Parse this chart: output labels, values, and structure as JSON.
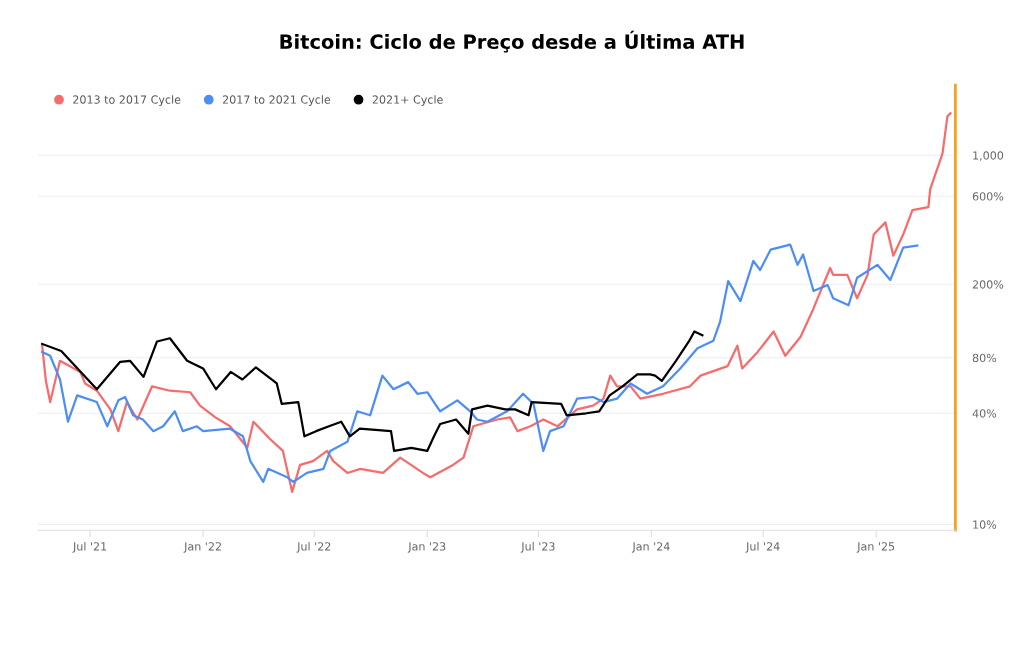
{
  "chart_data": {
    "type": "line",
    "title": "Bitcoin: Ciclo de Preço desde a Última ATH",
    "xlim": [
      "2021-04-07",
      "2025-05-10"
    ],
    "xticks": [
      {
        "value": "2021-07-01",
        "label": "Jul '21"
      },
      {
        "value": "2022-01-01",
        "label": "Jan '22"
      },
      {
        "value": "2022-07-01",
        "label": "Jul '22"
      },
      {
        "value": "2023-01-01",
        "label": "Jan '23"
      },
      {
        "value": "2023-07-01",
        "label": "Jul '23"
      },
      {
        "value": "2024-01-01",
        "label": "Jan '24"
      },
      {
        "value": "2024-07-01",
        "label": "Jul '24"
      },
      {
        "value": "2025-01-01",
        "label": "Jan '25"
      }
    ],
    "ylim": [
      9.3,
      2400
    ],
    "log": "y",
    "yticks": [
      {
        "value": 10,
        "label": "10%"
      },
      {
        "value": 40,
        "label": "40%"
      },
      {
        "value": 80,
        "label": "80%"
      },
      {
        "value": 200,
        "label": "200%"
      },
      {
        "value": 600,
        "label": "600%"
      },
      {
        "value": 1000,
        "label": "1,000"
      }
    ],
    "grid": "y",
    "legend": "top left",
    "series": [
      {
        "name": "2013 to 2017 Cycle",
        "color": "#f76b6b",
        "x": [
          "2021-04-14",
          "2021-04-20",
          "2021-04-27",
          "2021-05-13",
          "2021-06-15",
          "2021-06-23",
          "2021-07-12",
          "2021-08-03",
          "2021-08-16",
          "2021-08-30",
          "2021-09-16",
          "2021-10-10",
          "2021-11-08",
          "2021-12-11",
          "2021-12-27",
          "2022-01-21",
          "2022-02-14",
          "2022-03-14",
          "2022-03-24",
          "2022-04-20",
          "2022-05-11",
          "2022-05-26",
          "2022-06-08",
          "2022-06-29",
          "2022-07-22",
          "2022-08-01",
          "2022-08-24",
          "2022-09-14",
          "2022-10-21",
          "2022-11-18",
          "2022-12-25",
          "2023-01-06",
          "2023-02-12",
          "2023-03-01",
          "2023-03-17",
          "2023-04-25",
          "2023-05-16",
          "2023-05-28",
          "2023-06-18",
          "2023-07-09",
          "2023-08-01",
          "2023-09-02",
          "2023-09-28",
          "2023-10-15",
          "2023-10-26",
          "2023-11-06",
          "2023-11-28",
          "2023-12-14",
          "2024-01-20",
          "2024-03-04",
          "2024-03-21",
          "2024-05-04",
          "2024-05-20",
          "2024-05-28",
          "2024-06-22",
          "2024-07-18",
          "2024-08-06",
          "2024-08-31",
          "2024-09-21",
          "2024-10-18",
          "2024-10-23",
          "2024-11-15",
          "2024-12-01",
          "2024-12-18",
          "2024-12-28",
          "2025-01-16",
          "2025-01-29",
          "2025-02-14",
          "2025-03-01",
          "2025-03-27",
          "2025-03-30",
          "2025-04-19",
          "2025-04-27",
          "2025-05-02"
        ],
        "values": [
          93,
          60,
          46,
          77,
          67,
          58,
          53,
          42,
          32,
          46,
          37,
          56,
          53,
          52,
          44,
          38,
          34,
          26,
          36,
          29,
          25,
          15,
          21,
          22,
          25,
          22,
          19,
          20,
          19,
          23,
          19,
          18,
          21,
          23,
          34,
          37,
          38,
          32,
          34,
          37,
          34,
          42,
          44,
          48,
          64,
          56,
          56,
          48,
          51,
          56,
          64,
          72,
          93,
          70,
          86,
          111,
          82,
          104,
          148,
          245,
          225,
          225,
          168,
          225,
          372,
          433,
          286,
          372,
          504,
          524,
          656,
          1020,
          1626,
          1690
        ]
      },
      {
        "name": "2017 to 2021 Cycle",
        "color": "#4d8df6",
        "x": [
          "2021-04-14",
          "2021-04-27",
          "2021-05-13",
          "2021-05-26",
          "2021-06-10",
          "2021-07-12",
          "2021-07-29",
          "2021-08-16",
          "2021-08-27",
          "2021-09-09",
          "2021-09-25",
          "2021-10-12",
          "2021-10-28",
          "2021-11-16",
          "2021-11-29",
          "2021-12-22",
          "2022-01-01",
          "2022-02-14",
          "2022-03-07",
          "2022-03-19",
          "2022-04-09",
          "2022-04-17",
          "2022-05-18",
          "2022-05-28",
          "2022-06-19",
          "2022-07-16",
          "2022-07-27",
          "2022-08-24",
          "2022-09-09",
          "2022-09-30",
          "2022-10-20",
          "2022-11-07",
          "2022-12-01",
          "2022-12-16",
          "2023-01-01",
          "2023-01-22",
          "2023-02-19",
          "2023-03-12",
          "2023-03-23",
          "2023-04-09",
          "2023-05-11",
          "2023-06-06",
          "2023-06-23",
          "2023-07-09",
          "2023-07-20",
          "2023-08-11",
          "2023-09-02",
          "2023-09-28",
          "2023-10-15",
          "2023-11-06",
          "2023-11-28",
          "2023-12-25",
          "2024-01-20",
          "2024-02-17",
          "2024-03-16",
          "2024-04-11",
          "2024-04-22",
          "2024-05-05",
          "2024-05-25",
          "2024-06-15",
          "2024-06-26",
          "2024-07-13",
          "2024-08-14",
          "2024-08-26",
          "2024-09-04",
          "2024-09-21",
          "2024-10-14",
          "2024-10-23",
          "2024-11-17",
          "2024-12-01",
          "2025-01-03",
          "2025-01-24",
          "2025-02-14",
          "2025-03-09"
        ],
        "values": [
          86,
          82,
          61,
          36,
          50,
          46,
          34,
          47,
          49,
          39,
          37,
          32,
          34,
          41,
          32,
          34,
          32,
          33,
          30,
          22,
          17,
          20,
          18,
          17,
          19,
          20,
          25,
          28,
          41,
          39,
          64,
          54,
          59,
          51,
          52,
          41,
          47,
          41,
          37,
          36,
          41,
          51,
          45,
          25,
          32,
          34,
          48,
          49,
          46,
          48,
          58,
          51,
          56,
          70,
          90,
          99,
          126,
          208,
          162,
          268,
          239,
          308,
          328,
          255,
          290,
          184,
          198,
          168,
          154,
          217,
          255,
          211,
          316,
          324
        ]
      },
      {
        "name": "2021+ Cycle",
        "color": "#000000",
        "x": [
          "2021-04-14",
          "2021-05-15",
          "2021-07-12",
          "2021-08-19",
          "2021-09-04",
          "2021-09-26",
          "2021-10-18",
          "2021-11-08",
          "2021-12-06",
          "2022-01-01",
          "2022-01-22",
          "2022-02-15",
          "2022-03-06",
          "2022-03-28",
          "2022-05-01",
          "2022-05-09",
          "2022-06-05",
          "2022-06-15",
          "2022-07-04",
          "2022-07-25",
          "2022-08-14",
          "2022-08-28",
          "2022-09-13",
          "2022-11-03",
          "2022-11-08",
          "2022-12-06",
          "2023-01-01",
          "2023-01-12",
          "2023-01-22",
          "2023-02-17",
          "2023-03-09",
          "2023-03-15",
          "2023-04-09",
          "2023-05-08",
          "2023-05-24",
          "2023-06-15",
          "2023-06-20",
          "2023-08-07",
          "2023-08-16",
          "2023-09-17",
          "2023-10-08",
          "2023-10-25",
          "2023-11-15",
          "2023-12-09",
          "2023-12-30",
          "2024-01-07",
          "2024-01-18",
          "2024-02-10",
          "2024-03-02",
          "2024-03-11",
          "2024-03-24"
        ],
        "values": [
          95,
          87,
          54,
          76,
          77,
          63,
          98,
          102,
          77,
          70,
          54,
          67,
          61,
          71,
          58,
          45,
          46,
          30,
          32,
          34,
          36,
          30,
          33,
          32,
          25,
          26,
          25,
          30,
          35,
          37,
          31,
          42,
          44,
          42,
          42,
          39,
          46,
          45,
          39,
          40,
          41,
          50,
          56,
          65,
          65,
          64,
          60,
          77,
          98,
          111,
          106
        ]
      }
    ]
  }
}
